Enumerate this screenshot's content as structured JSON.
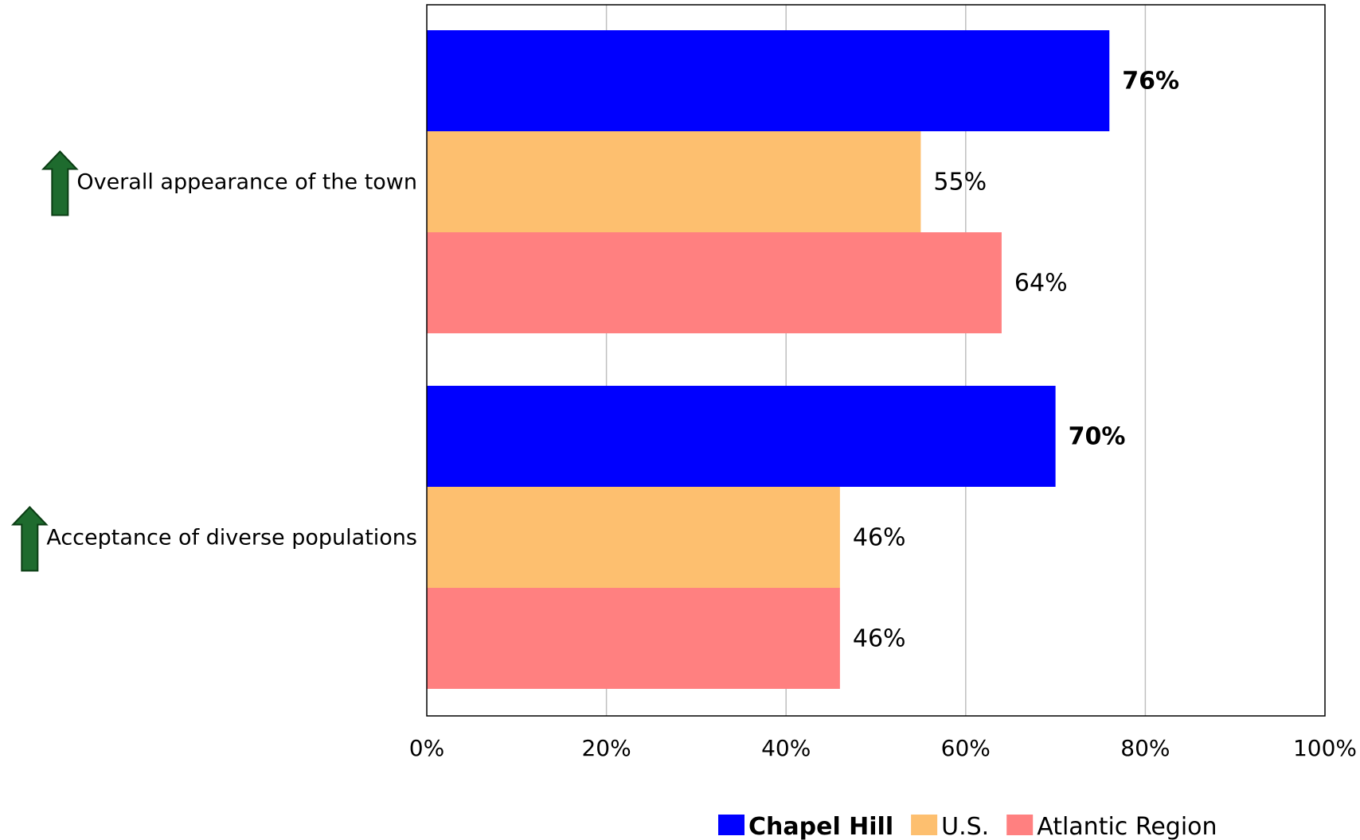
{
  "chart_data": {
    "type": "bar",
    "orientation": "horizontal",
    "categories": [
      "Overall appearance of the town",
      "Acceptance of diverse populations"
    ],
    "category_markers": [
      "up-arrow-icon",
      "up-arrow-icon"
    ],
    "series": [
      {
        "name": "Chapel Hill",
        "color": "#0000FF",
        "values": [
          76,
          70
        ],
        "labels": [
          "76%",
          "70%"
        ],
        "label_bold": true
      },
      {
        "name": "U.S.",
        "color": "#FDBF6F",
        "values": [
          55,
          46
        ],
        "labels": [
          "55%",
          "46%"
        ],
        "label_bold": false
      },
      {
        "name": "Atlantic Region",
        "color": "#FF8080",
        "values": [
          64,
          46
        ],
        "labels": [
          "64%",
          "46%"
        ],
        "label_bold": false
      }
    ],
    "xlim": [
      0,
      100
    ],
    "xticks": [
      0,
      20,
      40,
      60,
      80,
      100
    ],
    "xtick_labels": [
      "0%",
      "20%",
      "40%",
      "60%",
      "80%",
      "100%"
    ],
    "grid": true,
    "legend_position": "bottom",
    "arrow_color": "#1E6B2E",
    "title": "",
    "xlabel": "",
    "ylabel": ""
  }
}
